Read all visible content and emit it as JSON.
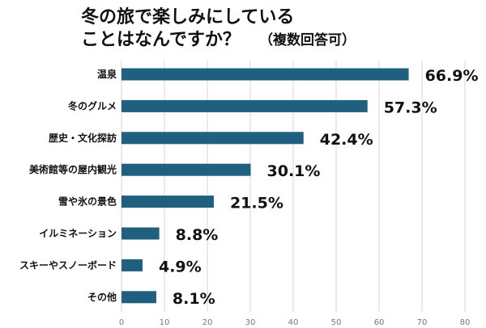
{
  "chart_data": {
    "type": "bar",
    "orientation": "horizontal",
    "title_lines": [
      "冬の旅で楽しみにしている",
      "ことはなんですか？"
    ],
    "subtitle": "（複数回答可）",
    "categories": [
      "温泉",
      "冬のグルメ",
      "歴史・文化探訪",
      "美術館等の屋内観光",
      "雪や氷の景色",
      "イルミネーション",
      "スキーやスノーボード",
      "その他"
    ],
    "values": [
      66.9,
      57.3,
      42.4,
      30.1,
      21.5,
      8.8,
      4.9,
      8.1
    ],
    "value_labels": [
      "66.9%",
      "57.3%",
      "42.4%",
      "30.1%",
      "21.5%",
      "8.8%",
      "4.9%",
      "8.1%"
    ],
    "xlim": [
      0,
      80
    ],
    "xticks": [
      0,
      10,
      20,
      30,
      40,
      50,
      60,
      70,
      80
    ],
    "xtick_labels": [
      "0",
      "10",
      "20",
      "30",
      "40",
      "50",
      "60",
      "70",
      "80"
    ],
    "bar_color": "#1f5f7f",
    "grid": true,
    "xlabel": "",
    "ylabel": ""
  }
}
